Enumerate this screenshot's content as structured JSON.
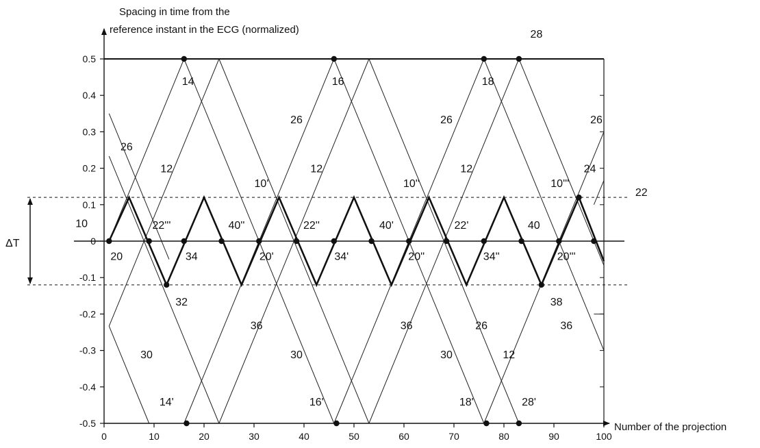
{
  "chart_data": {
    "type": "line",
    "ylabel_lines": [
      "Spacing in time from the",
      "reference instant in the ECG (normalized)"
    ],
    "xlabel": "Number of the projection",
    "xlim": [
      0,
      100
    ],
    "ylim": [
      -0.5,
      0.5
    ],
    "x_ticks": [
      "0",
      "10",
      "20",
      "30",
      "40",
      "50",
      "60",
      "70",
      "80",
      "90",
      "100"
    ],
    "y_ticks": [
      "0.5",
      "0.4",
      "0.3",
      "0.2",
      "0.1",
      "0",
      "-0.1",
      "-0.2",
      "-0.3",
      "-0.4",
      "-0.5"
    ],
    "delta_label": "ΔT",
    "dashed_levels": [
      0.12,
      -0.12
    ],
    "thin_lines": [
      {
        "x1": 16,
        "y1": 0.5,
        "x2": 46,
        "y2": -0.5
      },
      {
        "x1": 46,
        "y1": 0.5,
        "x2": 76,
        "y2": -0.5
      },
      {
        "x1": 76,
        "y1": 0.5,
        "x2": 100,
        "y2": -0.3
      },
      {
        "x1": 16,
        "y1": 0.5,
        "x2": 1,
        "y2": 0.0
      },
      {
        "x1": 46,
        "y1": 0.5,
        "x2": 16,
        "y2": -0.5
      },
      {
        "x1": 76,
        "y1": 0.5,
        "x2": 46,
        "y2": -0.5
      },
      {
        "x1": 100,
        "y1": 0.3,
        "x2": 76,
        "y2": -0.5
      },
      {
        "x1": 83,
        "y1": 0.5,
        "x2": 53,
        "y2": -0.5
      },
      {
        "x1": 53,
        "y1": 0.5,
        "x2": 23,
        "y2": -0.5
      },
      {
        "x1": 23,
        "y1": 0.5,
        "x2": 1,
        "y2": -0.2333
      },
      {
        "x1": 83,
        "y1": 0.5,
        "x2": 100,
        "y2": -0.0667
      },
      {
        "x1": 53,
        "y1": 0.5,
        "x2": 83,
        "y2": -0.5
      },
      {
        "x1": 23,
        "y1": 0.5,
        "x2": 53,
        "y2": -0.5
      },
      {
        "x1": 1,
        "y1": 0.2333,
        "x2": 23,
        "y2": -0.5
      },
      {
        "x1": 1,
        "y1": -0.2333,
        "x2": 9,
        "y2": -0.5
      },
      {
        "x1": 1,
        "y1": 0.35,
        "x2": 13,
        "y2": -0.05
      },
      {
        "x1": 98,
        "y1": 0.1,
        "x2": 100,
        "y2": 0.1667
      },
      {
        "x1": 98,
        "y1": -0.2,
        "x2": 100,
        "y2": -0.2
      }
    ],
    "bold_path": {
      "x": [
        1,
        5,
        12.5,
        20,
        27.5,
        35,
        42.5,
        50,
        57.5,
        65,
        72.5,
        80,
        87.5,
        95,
        100
      ],
      "y": [
        0,
        0.12,
        -0.12,
        0.12,
        -0.12,
        0.12,
        -0.12,
        0.12,
        -0.12,
        0.12,
        -0.12,
        0.12,
        -0.12,
        0.12,
        -0.055
      ]
    },
    "points": [
      {
        "x": 1,
        "y": 0
      },
      {
        "x": 9,
        "y": 0
      },
      {
        "x": 16,
        "y": 0
      },
      {
        "x": 23.5,
        "y": 0
      },
      {
        "x": 31,
        "y": 0
      },
      {
        "x": 38.5,
        "y": 0
      },
      {
        "x": 46,
        "y": 0
      },
      {
        "x": 53.5,
        "y": 0
      },
      {
        "x": 61,
        "y": 0
      },
      {
        "x": 68.5,
        "y": 0
      },
      {
        "x": 76,
        "y": 0
      },
      {
        "x": 83.5,
        "y": 0
      },
      {
        "x": 91,
        "y": 0
      },
      {
        "x": 98,
        "y": 0
      },
      {
        "x": 12.5,
        "y": -0.12
      },
      {
        "x": 87.5,
        "y": -0.12
      },
      {
        "x": 95,
        "y": 0.12
      },
      {
        "x": 16,
        "y": 0.5
      },
      {
        "x": 46,
        "y": 0.5
      },
      {
        "x": 76,
        "y": 0.5
      },
      {
        "x": 83,
        "y": 0.5
      },
      {
        "x": 16.5,
        "y": -0.5
      },
      {
        "x": 46.5,
        "y": -0.5
      },
      {
        "x": 76.5,
        "y": -0.5
      },
      {
        "x": 83,
        "y": -0.5
      }
    ],
    "annotations": [
      {
        "text": "28",
        "x": 86.5,
        "y": 0.57
      },
      {
        "text": "14",
        "x": 16.8,
        "y": 0.44
      },
      {
        "text": "16",
        "x": 46.8,
        "y": 0.44
      },
      {
        "text": "18",
        "x": 76.8,
        "y": 0.44
      },
      {
        "text": "26",
        "x": 38.5,
        "y": 0.335
      },
      {
        "text": "26",
        "x": 68.5,
        "y": 0.335
      },
      {
        "text": "26",
        "x": 98.5,
        "y": 0.335
      },
      {
        "text": "26",
        "x": 4.5,
        "y": 0.26
      },
      {
        "text": "12",
        "x": 12.5,
        "y": 0.2
      },
      {
        "text": "12",
        "x": 42.5,
        "y": 0.2
      },
      {
        "text": "12",
        "x": 72.5,
        "y": 0.2
      },
      {
        "text": "10'",
        "x": 31.5,
        "y": 0.16
      },
      {
        "text": "10''",
        "x": 61.5,
        "y": 0.16
      },
      {
        "text": "10'''",
        "x": 91.2,
        "y": 0.16
      },
      {
        "text": "24",
        "x": 97.2,
        "y": 0.2
      },
      {
        "text": "22",
        "x": 107.5,
        "y": 0.135
      },
      {
        "text": "10",
        "x": -4.5,
        "y": 0.05
      },
      {
        "text": "22'''",
        "x": 11.5,
        "y": 0.045
      },
      {
        "text": "40''",
        "x": 26.5,
        "y": 0.045
      },
      {
        "text": "22''",
        "x": 41.5,
        "y": 0.045
      },
      {
        "text": "40'",
        "x": 56.5,
        "y": 0.045
      },
      {
        "text": "22'",
        "x": 71.5,
        "y": 0.045
      },
      {
        "text": "40",
        "x": 86,
        "y": 0.045
      },
      {
        "text": "20",
        "x": 2.5,
        "y": -0.04
      },
      {
        "text": "34",
        "x": 17.5,
        "y": -0.04
      },
      {
        "text": "20'",
        "x": 32.5,
        "y": -0.04
      },
      {
        "text": "34'",
        "x": 47.5,
        "y": -0.04
      },
      {
        "text": "20''",
        "x": 62.5,
        "y": -0.04
      },
      {
        "text": "34''",
        "x": 77.5,
        "y": -0.04
      },
      {
        "text": "20'''",
        "x": 92.5,
        "y": -0.04
      },
      {
        "text": "32",
        "x": 15.5,
        "y": -0.165
      },
      {
        "text": "38",
        "x": 90.5,
        "y": -0.165
      },
      {
        "text": "36",
        "x": 30.5,
        "y": -0.23
      },
      {
        "text": "36",
        "x": 60.5,
        "y": -0.23
      },
      {
        "text": "26",
        "x": 75.5,
        "y": -0.23
      },
      {
        "text": "36",
        "x": 92.5,
        "y": -0.23
      },
      {
        "text": "30",
        "x": 8.5,
        "y": -0.31
      },
      {
        "text": "30",
        "x": 38.5,
        "y": -0.31
      },
      {
        "text": "30",
        "x": 68.5,
        "y": -0.31
      },
      {
        "text": "12",
        "x": 81,
        "y": -0.31
      },
      {
        "text": "14'",
        "x": 12.5,
        "y": -0.44
      },
      {
        "text": "16'",
        "x": 42.5,
        "y": -0.44
      },
      {
        "text": "18'",
        "x": 72.5,
        "y": -0.44
      },
      {
        "text": "28'",
        "x": 85,
        "y": -0.44
      }
    ]
  }
}
